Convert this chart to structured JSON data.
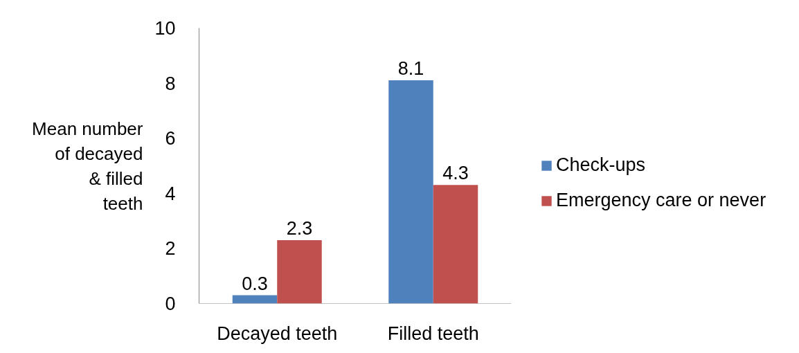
{
  "chart_data": {
    "type": "bar",
    "categories": [
      "Decayed teeth",
      "Filled teeth"
    ],
    "series": [
      {
        "name": "Check-ups",
        "color": "#4f81bd",
        "values": [
          0.3,
          8.1
        ]
      },
      {
        "name": "Emergency care or never",
        "color": "#c0504d",
        "values": [
          2.3,
          4.3
        ]
      }
    ],
    "ylabel": "Mean number of decayed & filled teeth",
    "ylim": [
      0,
      10
    ],
    "yticks": [
      0,
      2,
      4,
      6,
      8,
      10
    ],
    "data_labels": true,
    "legend": "right",
    "grid": false
  }
}
